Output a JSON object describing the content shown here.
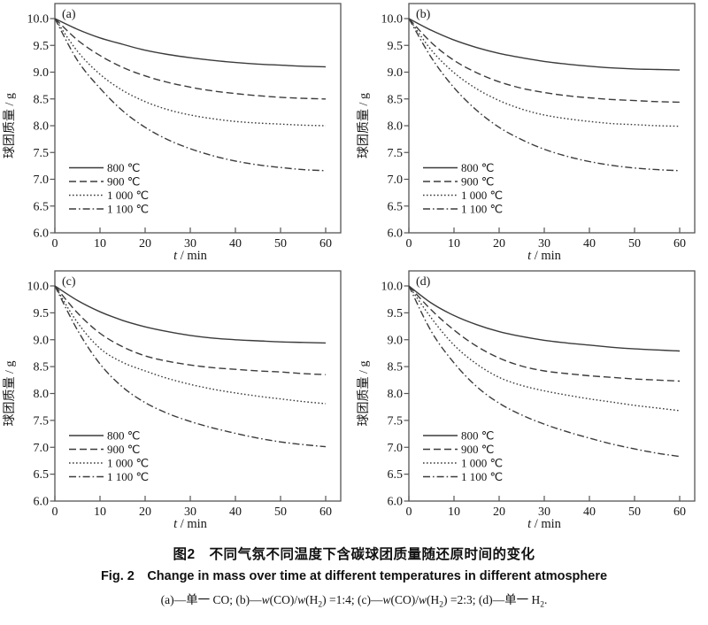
{
  "figure": {
    "caption_zh": "图2 不同气氛不同温度下含碳球团质量随还原时间的变化",
    "caption_en": "Fig. 2 Change in mass over time at different temperatures in different atmosphere",
    "caption_notes_text": "(a)—单一 CO; (b)—w(CO)/w(H2) =1:4; (c)—w(CO)/w(H2) =2:3; (d)—单一 H2.",
    "caption_note_segments": [
      {
        "text": "(a)—单一 CO; (b)—"
      },
      {
        "text": "w",
        "italic": true
      },
      {
        "text": "(CO)/"
      },
      {
        "text": "w",
        "italic": true
      },
      {
        "text": "(H"
      },
      {
        "text": "2",
        "sub": true
      },
      {
        "text": ") =1:4; (c)—"
      },
      {
        "text": "w",
        "italic": true
      },
      {
        "text": "(CO)/"
      },
      {
        "text": "w",
        "italic": true
      },
      {
        "text": "(H"
      },
      {
        "text": "2",
        "sub": true
      },
      {
        "text": ") =2:3; (d)—单一 H"
      },
      {
        "text": "2",
        "sub": true
      },
      {
        "text": "."
      }
    ]
  },
  "colors": {
    "line": "#3b3b3b",
    "frame": "#555555",
    "text": "#161616",
    "background": "#ffffff"
  },
  "chart_data": [
    {
      "panel_label": "(a)",
      "atmosphere": "单一 CO",
      "type": "line",
      "title": "",
      "xlabel": "t / min",
      "ylabel": "球团质量 / g",
      "xlim": [
        0,
        60
      ],
      "ylim": [
        6.0,
        10.0
      ],
      "xticks": [
        0,
        10,
        20,
        30,
        40,
        50,
        60
      ],
      "yticks": [
        6.0,
        6.5,
        7.0,
        7.5,
        8.0,
        8.5,
        9.0,
        9.5,
        10.0
      ],
      "grid": false,
      "legend_position": "lower-left",
      "x": [
        0,
        5,
        10,
        15,
        20,
        25,
        30,
        35,
        40,
        45,
        50,
        55,
        60
      ],
      "series": [
        {
          "name": "800 ℃",
          "line_style": "solid",
          "values": [
            10.0,
            9.8,
            9.64,
            9.52,
            9.41,
            9.33,
            9.27,
            9.22,
            9.18,
            9.15,
            9.13,
            9.11,
            9.1
          ]
        },
        {
          "name": "900 ℃",
          "line_style": "dashed",
          "values": [
            10.0,
            9.6,
            9.31,
            9.09,
            8.93,
            8.81,
            8.72,
            8.65,
            8.6,
            8.56,
            8.53,
            8.51,
            8.5
          ]
        },
        {
          "name": "1 000 ℃",
          "line_style": "dotted",
          "values": [
            10.0,
            9.39,
            8.96,
            8.66,
            8.45,
            8.3,
            8.2,
            8.13,
            8.08,
            8.05,
            8.03,
            8.01,
            8.0
          ]
        },
        {
          "name": "1 100 ℃",
          "line_style": "dashdot",
          "values": [
            10.0,
            9.22,
            8.7,
            8.28,
            7.97,
            7.74,
            7.57,
            7.44,
            7.34,
            7.27,
            7.22,
            7.18,
            7.16
          ]
        }
      ]
    },
    {
      "panel_label": "(b)",
      "atmosphere": "w(CO)/w(H2) = 1:4",
      "type": "line",
      "title": "",
      "xlabel": "t / min",
      "ylabel": "球团质量 / g",
      "xlim": [
        0,
        60
      ],
      "ylim": [
        6.0,
        10.0
      ],
      "xticks": [
        0,
        10,
        20,
        30,
        40,
        50,
        60
      ],
      "yticks": [
        6.0,
        6.5,
        7.0,
        7.5,
        8.0,
        8.5,
        9.0,
        9.5,
        10.0
      ],
      "grid": false,
      "legend_position": "lower-left",
      "x": [
        0,
        5,
        10,
        15,
        20,
        25,
        30,
        35,
        40,
        45,
        50,
        55,
        60
      ],
      "series": [
        {
          "name": "800 ℃",
          "line_style": "solid",
          "values": [
            10.0,
            9.78,
            9.6,
            9.46,
            9.35,
            9.27,
            9.2,
            9.15,
            9.11,
            9.08,
            9.06,
            9.05,
            9.04
          ]
        },
        {
          "name": "900 ℃",
          "line_style": "dashed",
          "values": [
            10.0,
            9.55,
            9.22,
            8.99,
            8.82,
            8.7,
            8.62,
            8.56,
            8.52,
            8.49,
            8.47,
            8.45,
            8.44
          ]
        },
        {
          "name": "1 000 ℃",
          "line_style": "dotted",
          "values": [
            10.0,
            9.41,
            8.99,
            8.69,
            8.47,
            8.31,
            8.2,
            8.13,
            8.08,
            8.04,
            8.02,
            8.0,
            7.99
          ]
        },
        {
          "name": "1 100 ℃",
          "line_style": "dashdot",
          "values": [
            10.0,
            9.27,
            8.71,
            8.29,
            7.97,
            7.74,
            7.56,
            7.43,
            7.33,
            7.26,
            7.21,
            7.18,
            7.16
          ]
        }
      ]
    },
    {
      "panel_label": "(c)",
      "atmosphere": "w(CO)/w(H2) = 2:3",
      "type": "line",
      "title": "",
      "xlabel": "t / min",
      "ylabel": "球团质量 / g",
      "xlim": [
        0,
        60
      ],
      "ylim": [
        6.0,
        10.0
      ],
      "xticks": [
        0,
        10,
        20,
        30,
        40,
        50,
        60
      ],
      "yticks": [
        6.0,
        6.5,
        7.0,
        7.5,
        8.0,
        8.5,
        9.0,
        9.5,
        10.0
      ],
      "grid": false,
      "legend_position": "lower-left",
      "x": [
        0,
        5,
        10,
        15,
        20,
        25,
        30,
        35,
        40,
        45,
        50,
        55,
        60
      ],
      "series": [
        {
          "name": "800 ℃",
          "line_style": "solid",
          "values": [
            10.0,
            9.73,
            9.52,
            9.36,
            9.24,
            9.15,
            9.08,
            9.03,
            9.0,
            8.98,
            8.96,
            8.95,
            8.94
          ]
        },
        {
          "name": "900 ℃",
          "line_style": "dashed",
          "values": [
            10.0,
            9.5,
            9.12,
            8.87,
            8.7,
            8.6,
            8.53,
            8.48,
            8.45,
            8.42,
            8.4,
            8.37,
            8.35
          ]
        },
        {
          "name": "1 000 ℃",
          "line_style": "dotted",
          "values": [
            10.0,
            9.32,
            8.84,
            8.58,
            8.42,
            8.28,
            8.17,
            8.08,
            8.01,
            7.95,
            7.9,
            7.85,
            7.81
          ]
        },
        {
          "name": "1 100 ℃",
          "line_style": "dashdot",
          "values": [
            10.0,
            9.18,
            8.55,
            8.12,
            7.83,
            7.63,
            7.48,
            7.36,
            7.26,
            7.17,
            7.1,
            7.05,
            7.01
          ]
        }
      ]
    },
    {
      "panel_label": "(d)",
      "atmosphere": "单一 H2",
      "type": "line",
      "title": "",
      "xlabel": "t / min",
      "ylabel": "球团质量 / g",
      "xlim": [
        0,
        60
      ],
      "ylim": [
        6.0,
        10.0
      ],
      "xticks": [
        0,
        10,
        20,
        30,
        40,
        50,
        60
      ],
      "yticks": [
        6.0,
        6.5,
        7.0,
        7.5,
        8.0,
        8.5,
        9.0,
        9.5,
        10.0
      ],
      "grid": false,
      "legend_position": "lower-left",
      "x": [
        0,
        5,
        10,
        15,
        20,
        25,
        30,
        35,
        40,
        45,
        50,
        55,
        60
      ],
      "series": [
        {
          "name": "800 ℃",
          "line_style": "solid",
          "values": [
            10.0,
            9.68,
            9.45,
            9.28,
            9.15,
            9.06,
            8.99,
            8.94,
            8.9,
            8.86,
            8.83,
            8.81,
            8.79
          ]
        },
        {
          "name": "900 ℃",
          "line_style": "dashed",
          "values": [
            10.0,
            9.55,
            9.18,
            8.88,
            8.66,
            8.51,
            8.42,
            8.37,
            8.33,
            8.3,
            8.27,
            8.25,
            8.23
          ]
        },
        {
          "name": "1 000 ℃",
          "line_style": "dotted",
          "values": [
            10.0,
            9.4,
            8.9,
            8.55,
            8.3,
            8.15,
            8.05,
            7.97,
            7.9,
            7.84,
            7.78,
            7.73,
            7.68
          ]
        },
        {
          "name": "1 100 ℃",
          "line_style": "dashdot",
          "values": [
            10.0,
            9.15,
            8.57,
            8.13,
            7.82,
            7.6,
            7.43,
            7.29,
            7.17,
            7.06,
            6.97,
            6.89,
            6.83
          ]
        }
      ]
    }
  ]
}
